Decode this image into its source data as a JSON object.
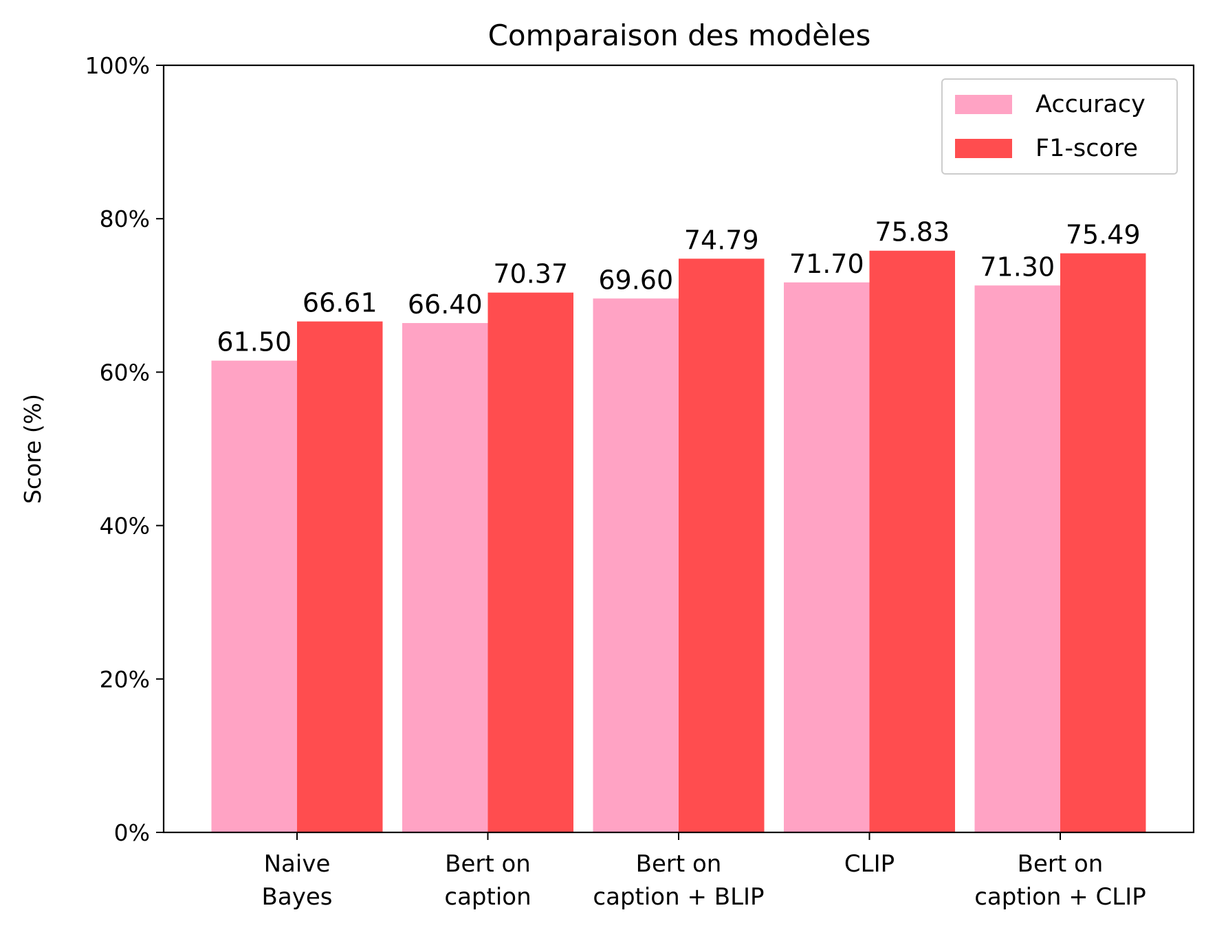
{
  "chart_data": {
    "type": "bar",
    "title": "Comparaison des modèles",
    "xlabel": "",
    "ylabel": "Score (%)",
    "ylim": [
      0,
      100
    ],
    "y_ticks": [
      "0%",
      "20%",
      "40%",
      "60%",
      "80%",
      "100%"
    ],
    "categories": [
      [
        "Naive",
        "Bayes"
      ],
      [
        "Bert on",
        "caption"
      ],
      [
        "Bert on",
        "caption + BLIP"
      ],
      [
        "CLIP"
      ],
      [
        "Bert on",
        "caption + CLIP"
      ]
    ],
    "series": [
      {
        "name": "Accuracy",
        "color": "#ffa3c4",
        "values": [
          61.5,
          66.4,
          69.6,
          71.7,
          71.3
        ],
        "labels": [
          "61.50",
          "66.40",
          "69.60",
          "71.70",
          "71.30"
        ]
      },
      {
        "name": "F1-score",
        "color": "#ff4d4f",
        "values": [
          66.61,
          70.37,
          74.79,
          75.83,
          75.49
        ],
        "labels": [
          "66.61",
          "70.37",
          "74.79",
          "75.83",
          "75.49"
        ]
      }
    ],
    "grid": false,
    "legend_position": "top-right"
  }
}
